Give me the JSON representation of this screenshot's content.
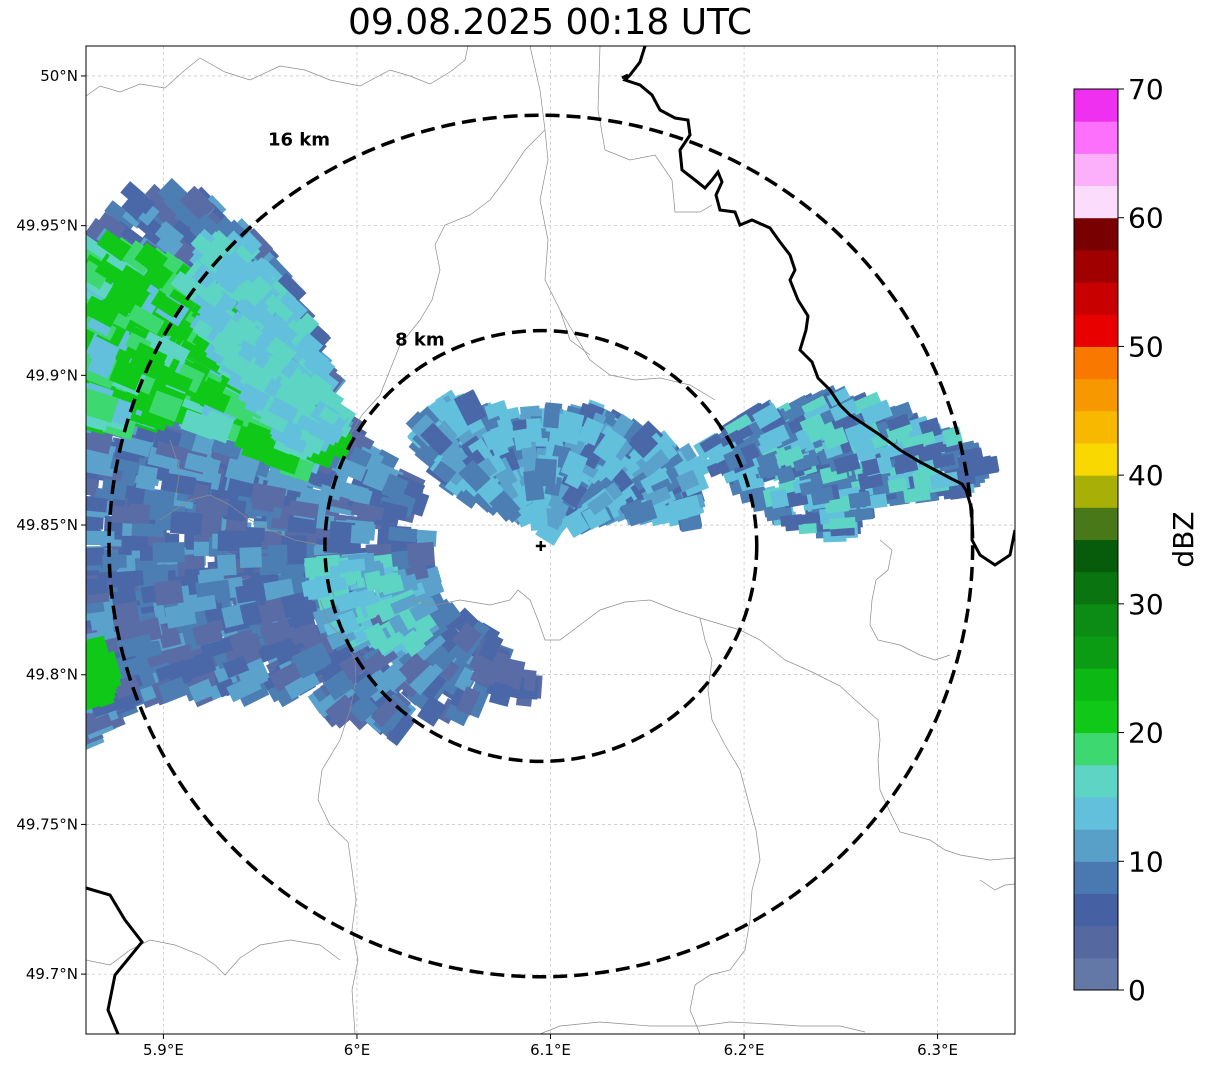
{
  "title": "09.08.2025 00:18 UTC",
  "map": {
    "lon_range": [
      5.86,
      6.34
    ],
    "lat_range": [
      49.68,
      50.01
    ],
    "lon_ticks": [
      {
        "value": 5.9,
        "label": "5.9°E"
      },
      {
        "value": 6.0,
        "label": "6°E"
      },
      {
        "value": 6.1,
        "label": "6.1°E"
      },
      {
        "value": 6.2,
        "label": "6.2°E"
      },
      {
        "value": 6.3,
        "label": "6.3°E"
      }
    ],
    "lat_ticks": [
      {
        "value": 49.7,
        "label": "49.7°N"
      },
      {
        "value": 49.75,
        "label": "49.75°N"
      },
      {
        "value": 49.8,
        "label": "49.8°N"
      },
      {
        "value": 49.85,
        "label": "49.85°N"
      },
      {
        "value": 49.9,
        "label": "49.9°N"
      },
      {
        "value": 49.95,
        "label": "49.95°N"
      },
      {
        "value": 50.0,
        "label": "50°N"
      }
    ],
    "grid": true,
    "radar_center": {
      "lon": 6.095,
      "lat": 49.843
    },
    "range_rings": [
      {
        "radius_km": 8,
        "label": "8 km"
      },
      {
        "radius_km": 16,
        "label": "16 km"
      }
    ]
  },
  "colorbar": {
    "label": "dBZ",
    "min": 0,
    "max": 70,
    "tick_labels": [
      "0",
      "10",
      "20",
      "30",
      "40",
      "50",
      "60",
      "70"
    ],
    "colors": [
      "#6478a8",
      "#5668a0",
      "#4660a4",
      "#4a78b0",
      "#58a0c8",
      "#62c0dc",
      "#5ed4c4",
      "#3ed870",
      "#10c818",
      "#0cb814",
      "#0c9c14",
      "#0c8c14",
      "#0a7410",
      "#065c0a",
      "#487818",
      "#a8b008",
      "#f8d800",
      "#f8b800",
      "#f89800",
      "#f87800",
      "#e80000",
      "#c80000",
      "#a00000",
      "#780000",
      "#fcdcfc",
      "#fcb0fc",
      "#fc70fc",
      "#f030f0"
    ]
  },
  "echo_color_palette": [
    "#5a6ca6",
    "#4a68a8",
    "#4c7eb4",
    "#5aa2cc",
    "#62c0dc",
    "#5ed4c4",
    "#3ed870",
    "#10c818"
  ]
}
